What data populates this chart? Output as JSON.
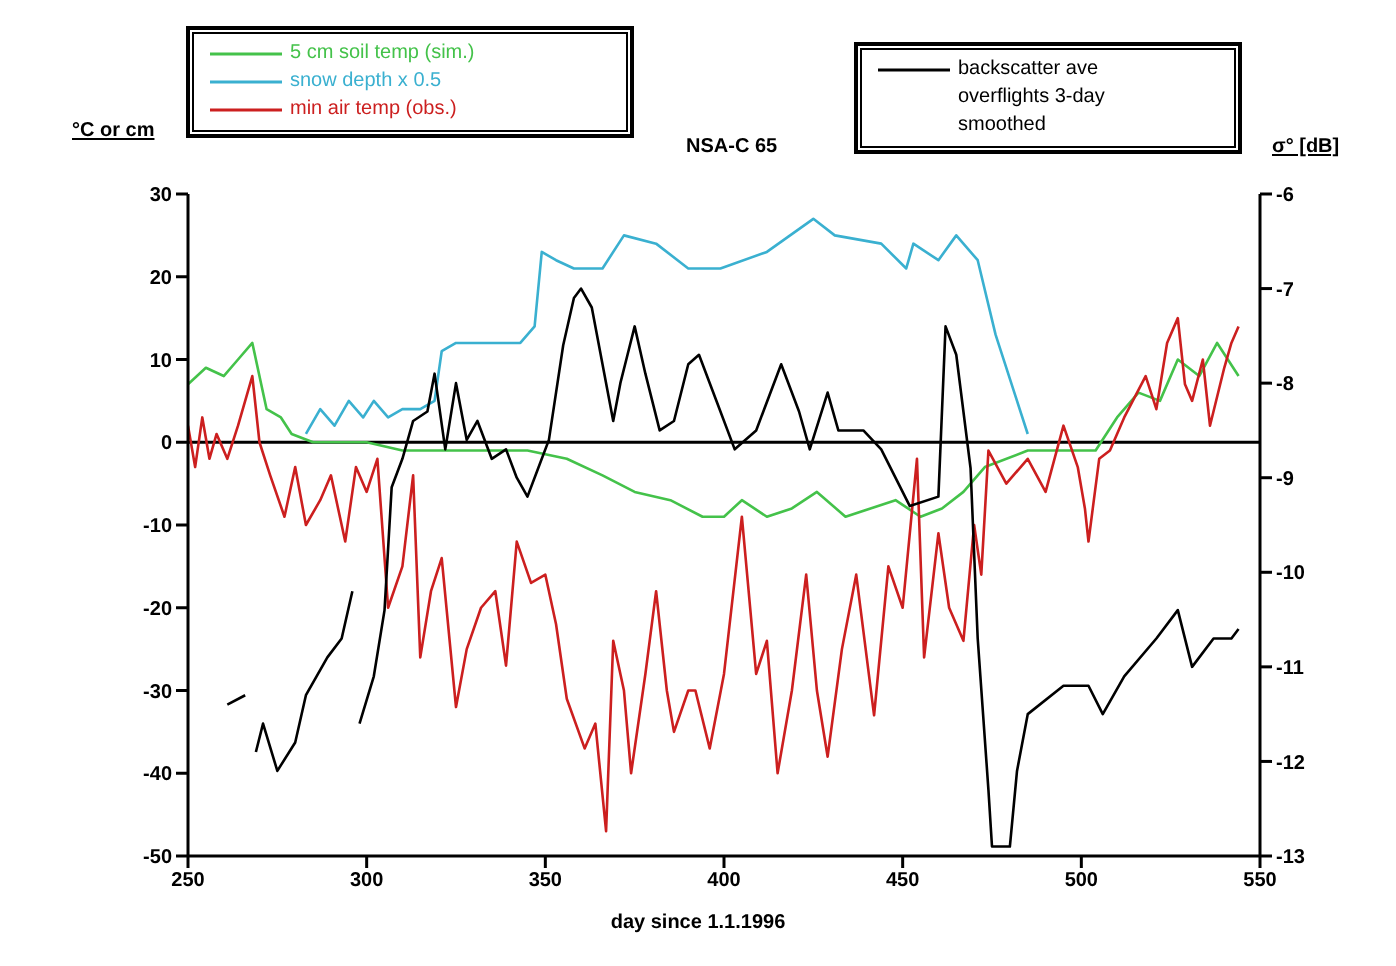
{
  "chart_data": {
    "type": "line",
    "title": "NSA-C 65",
    "xlabel": "day since 1.1.1996",
    "ylabel": "°C or cm",
    "y2label": "σ° [dB]",
    "xlim": [
      250,
      550
    ],
    "xticks": [
      250,
      300,
      350,
      400,
      450,
      500,
      550
    ],
    "ylim": [
      -50,
      30
    ],
    "yticks": [
      -50,
      -40,
      -30,
      -20,
      -10,
      0,
      10,
      20,
      30
    ],
    "y2lim": [
      -13,
      -6
    ],
    "y2ticks": [
      -13,
      -12,
      -11,
      -10,
      -9,
      -8,
      -7,
      -6
    ],
    "legend": "top",
    "grid": false,
    "marker": "none",
    "line_style": "solid",
    "ref_lines": [
      {
        "axis": "y",
        "value": 0,
        "color": "#000000"
      }
    ],
    "series": [
      {
        "name": "5 cm soil temp (sim.)",
        "color": "#44c24a",
        "x": [
          250,
          255,
          260,
          264,
          268,
          272,
          276,
          279,
          285,
          300,
          310,
          330,
          345,
          356,
          366,
          375,
          385,
          394,
          400,
          405,
          412,
          419,
          426,
          434,
          441,
          448,
          455,
          461,
          467,
          473,
          485,
          504,
          510,
          516,
          522,
          527,
          533,
          538,
          544
        ],
        "values": [
          7,
          9,
          8,
          10,
          12,
          4,
          3,
          1,
          0,
          0,
          -1,
          -1,
          -1,
          -2,
          -4,
          -6,
          -7,
          -9,
          -9,
          -7,
          -9,
          -8,
          -6,
          -9,
          -8,
          -7,
          -9,
          -8,
          -6,
          -3,
          -1,
          -1,
          3,
          6,
          5,
          10,
          8,
          12,
          8
        ]
      },
      {
        "name": "snow depth x 0.5",
        "color": "#3ab0d0",
        "x": [
          283,
          287,
          291,
          295,
          299,
          302,
          306,
          310,
          315,
          319,
          321,
          325,
          334,
          343,
          347,
          349,
          353,
          358,
          366,
          372,
          381,
          390,
          399,
          412,
          425,
          431,
          444,
          451,
          453,
          460,
          465,
          471,
          476,
          482,
          485
        ],
        "values": [
          1,
          4,
          2,
          5,
          3,
          5,
          3,
          4,
          4,
          5,
          11,
          12,
          12,
          12,
          14,
          23,
          22,
          21,
          21,
          25,
          24,
          21,
          21,
          23,
          27,
          25,
          24,
          21,
          24,
          22,
          25,
          22,
          13,
          5,
          1
        ]
      },
      {
        "name": "min air temp (obs.)",
        "color": "#cc1f1f",
        "x": [
          250,
          252,
          254,
          256,
          258,
          261,
          264,
          268,
          270,
          273,
          277,
          280,
          283,
          287,
          290,
          294,
          297,
          300,
          303,
          306,
          310,
          313,
          315,
          318,
          321,
          325,
          328,
          332,
          336,
          339,
          342,
          346,
          350,
          353,
          356,
          361,
          364,
          367,
          369,
          372,
          374,
          378,
          381,
          384,
          386,
          390,
          392,
          396,
          400,
          405,
          409,
          412,
          415,
          419,
          423,
          426,
          429,
          433,
          437,
          442,
          446,
          450,
          454,
          456,
          460,
          463,
          467,
          470,
          472,
          474,
          479,
          485,
          490,
          495,
          499,
          501,
          502,
          505,
          508,
          512,
          518,
          521,
          524,
          527,
          529,
          531,
          534,
          536,
          540,
          542,
          544
        ],
        "values": [
          2,
          -3,
          3,
          -2,
          1,
          -2,
          2,
          8,
          0,
          -4,
          -9,
          -3,
          -10,
          -7,
          -4,
          -12,
          -3,
          -6,
          -2,
          -20,
          -15,
          -4,
          -26,
          -18,
          -14,
          -32,
          -25,
          -20,
          -18,
          -27,
          -12,
          -17,
          -16,
          -22,
          -31,
          -37,
          -34,
          -47,
          -24,
          -30,
          -40,
          -28,
          -18,
          -30,
          -35,
          -30,
          -30,
          -37,
          -28,
          -9,
          -28,
          -24,
          -40,
          -30,
          -16,
          -30,
          -38,
          -25,
          -16,
          -33,
          -15,
          -20,
          -2,
          -26,
          -11,
          -20,
          -24,
          -10,
          -16,
          -1,
          -5,
          -2,
          -6,
          2,
          -3,
          -8,
          -12,
          -2,
          -1,
          3,
          8,
          4,
          12,
          15,
          7,
          5,
          10,
          2,
          9,
          12,
          14
        ]
      },
      {
        "name": "backscatter ave overflights 3-day smoothed",
        "color": "#000000",
        "axis": "y2",
        "x": [
          261,
          266,
          267,
          269,
          271,
          275,
          280,
          283,
          289,
          293,
          296,
          297,
          298,
          302,
          305,
          307,
          310,
          313,
          317,
          319,
          322,
          325,
          328,
          331,
          335,
          339,
          342,
          345,
          348,
          351,
          355,
          358,
          360,
          363,
          366,
          369,
          371,
          373,
          375,
          378,
          382,
          386,
          390,
          393,
          398,
          403,
          409,
          416,
          421,
          424,
          429,
          432,
          439,
          444,
          452,
          460,
          462,
          465,
          469,
          471,
          474,
          475,
          480,
          482,
          485,
          495,
          502,
          506,
          512,
          521,
          527,
          531,
          537,
          542,
          544
        ],
        "values": [
          -11.4,
          -11.3,
          null,
          -11.9,
          -11.6,
          -12.1,
          -11.8,
          -11.3,
          -10.9,
          -10.7,
          -10.2,
          null,
          -11.6,
          -11.1,
          -10.4,
          -9.1,
          -8.8,
          -8.4,
          -8.3,
          -7.9,
          -8.7,
          -8.0,
          -8.6,
          -8.4,
          -8.8,
          -8.7,
          -9.0,
          -9.2,
          -8.9,
          -8.6,
          -7.6,
          -7.1,
          -7.0,
          -7.2,
          -7.8,
          -8.4,
          -8.0,
          -7.7,
          -7.4,
          -7.9,
          -8.5,
          -8.4,
          -7.8,
          -7.7,
          -8.2,
          -8.7,
          -8.5,
          -7.8,
          -8.3,
          -8.7,
          -8.1,
          -8.5,
          -8.5,
          -8.7,
          -9.3,
          -9.2,
          -7.4,
          -7.7,
          -8.9,
          -10.7,
          -12.3,
          -12.9,
          -12.9,
          -12.1,
          -11.5,
          -11.2,
          -11.2,
          -11.5,
          -11.1,
          -10.7,
          -10.4,
          -11.0,
          -10.7,
          -10.7,
          -10.6
        ]
      }
    ]
  }
}
